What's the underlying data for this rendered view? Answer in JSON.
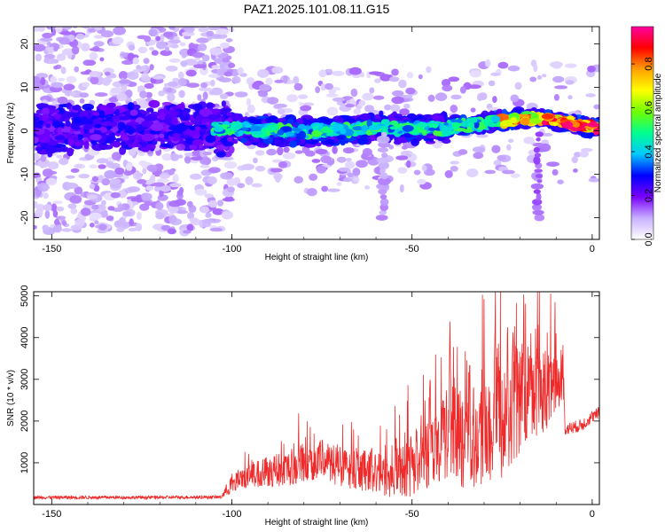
{
  "title": "PAZ1.2025.101.08.11.G15",
  "chart_data": [
    {
      "type": "heatmap",
      "xlabel": "Height of straight line (km)",
      "ylabel": "Frequency (Hz)",
      "xlim": [
        -155,
        2
      ],
      "ylim": [
        -25,
        24
      ],
      "xticks": [
        -150,
        -100,
        -50,
        0
      ],
      "yticks": [
        -20,
        -10,
        0,
        10,
        20
      ],
      "ridge": [
        {
          "x": -150,
          "y": 0.5
        },
        {
          "x": -130,
          "y": 0.8
        },
        {
          "x": -110,
          "y": 0.6
        },
        {
          "x": -95,
          "y": 0.3
        },
        {
          "x": -80,
          "y": -0.3
        },
        {
          "x": -70,
          "y": 0.2
        },
        {
          "x": -60,
          "y": 0.8
        },
        {
          "x": -50,
          "y": 0.6
        },
        {
          "x": -40,
          "y": 0.8
        },
        {
          "x": -30,
          "y": 1.8
        },
        {
          "x": -20,
          "y": 2.8
        },
        {
          "x": -12,
          "y": 2.6
        },
        {
          "x": -5,
          "y": 1.6
        },
        {
          "x": 0,
          "y": 0.8
        }
      ],
      "colorbar": {
        "label": "Normalized spectral amplitude",
        "ticks": [
          0.0,
          0.2,
          0.4,
          0.6,
          0.8
        ],
        "range": [
          0,
          0.97
        ],
        "colors": [
          "#ffffff",
          "#c8b0ff",
          "#7a00ff",
          "#0000ff",
          "#00c8ff",
          "#00ff90",
          "#70ff00",
          "#ffff00",
          "#ffa000",
          "#ff0000",
          "#ff00a0"
        ]
      }
    },
    {
      "type": "line",
      "xlabel": "Height of straight line (km)",
      "ylabel": "SNR (10 * v/v)",
      "xlim": [
        -155,
        2
      ],
      "ylim": [
        0,
        5100
      ],
      "xticks": [
        -150,
        -100,
        -50,
        0
      ],
      "yticks": [
        1000,
        2000,
        3000,
        4000,
        5000
      ],
      "color": "#ee2a2a",
      "envelope": [
        {
          "x": -155,
          "y": 170
        },
        {
          "x": -140,
          "y": 170
        },
        {
          "x": -120,
          "y": 170
        },
        {
          "x": -103,
          "y": 180
        },
        {
          "x": -100,
          "y": 500
        },
        {
          "x": -95,
          "y": 700
        },
        {
          "x": -90,
          "y": 800
        },
        {
          "x": -85,
          "y": 850
        },
        {
          "x": -80,
          "y": 1000
        },
        {
          "x": -75,
          "y": 1100
        },
        {
          "x": -70,
          "y": 900
        },
        {
          "x": -65,
          "y": 800
        },
        {
          "x": -60,
          "y": 750
        },
        {
          "x": -55,
          "y": 700
        },
        {
          "x": -50,
          "y": 950
        },
        {
          "x": -45,
          "y": 1300
        },
        {
          "x": -40,
          "y": 1700
        },
        {
          "x": -35,
          "y": 1600
        },
        {
          "x": -30,
          "y": 1800
        },
        {
          "x": -25,
          "y": 2000
        },
        {
          "x": -20,
          "y": 2600
        },
        {
          "x": -15,
          "y": 2700
        },
        {
          "x": -10,
          "y": 2800
        },
        {
          "x": -8,
          "y": 3100
        },
        {
          "x": -7.5,
          "y": 1800
        },
        {
          "x": -3,
          "y": 1900
        },
        {
          "x": 0,
          "y": 2100
        },
        {
          "x": 2,
          "y": 2200
        }
      ],
      "noise": [
        {
          "x": -155,
          "y": 40
        },
        {
          "x": -103,
          "y": 40
        },
        {
          "x": -100,
          "y": 250
        },
        {
          "x": -80,
          "y": 500
        },
        {
          "x": -60,
          "y": 450
        },
        {
          "x": -45,
          "y": 900
        },
        {
          "x": -35,
          "y": 1300
        },
        {
          "x": -20,
          "y": 1400
        },
        {
          "x": -12,
          "y": 900
        },
        {
          "x": -8,
          "y": 500
        },
        {
          "x": -7.5,
          "y": 150
        },
        {
          "x": 2,
          "y": 150
        }
      ],
      "peaks": [
        {
          "x": -39.5,
          "y": 4800
        },
        {
          "x": -22,
          "y": 4850
        },
        {
          "x": -19,
          "y": 5100
        },
        {
          "x": -27,
          "y": 4600
        },
        {
          "x": -15,
          "y": 4400
        },
        {
          "x": -23.5,
          "y": 4450
        },
        {
          "x": -45,
          "y": 3300
        },
        {
          "x": -34,
          "y": 3600
        },
        {
          "x": -30,
          "y": 3900
        }
      ]
    }
  ]
}
